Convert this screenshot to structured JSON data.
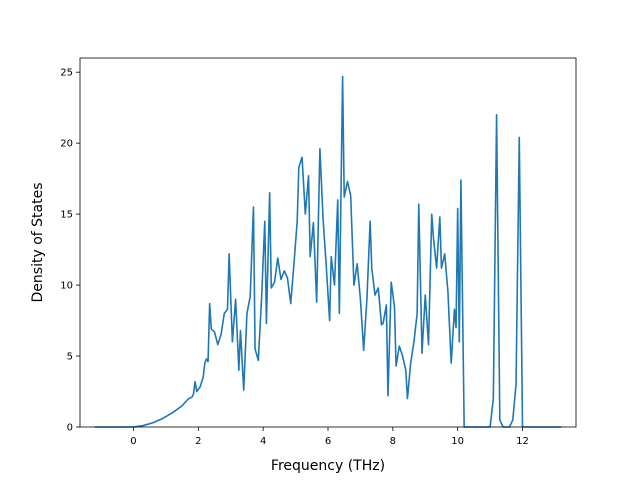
{
  "chart_data": {
    "type": "line",
    "title": "",
    "xlabel": "Frequency (THz)",
    "ylabel": "Density of States",
    "xlim": [
      -1.65,
      13.65
    ],
    "ylim": [
      0,
      26
    ],
    "xticks": [
      0,
      2,
      4,
      6,
      8,
      10,
      12
    ],
    "yticks": [
      0,
      5,
      10,
      15,
      20,
      25
    ],
    "grid": false,
    "legend": "none",
    "line_color": "#1f77b4",
    "series": [
      {
        "x": [
          -1.2,
          -0.5,
          0.0,
          0.3,
          0.6,
          0.9,
          1.2,
          1.5,
          1.7,
          1.8,
          1.85,
          1.9,
          1.95,
          2.05,
          2.15,
          2.2,
          2.25,
          2.3,
          2.35,
          2.4,
          2.5,
          2.6,
          2.7,
          2.8,
          2.9,
          2.95,
          3.05,
          3.15,
          3.25,
          3.3,
          3.4,
          3.5,
          3.6,
          3.7,
          3.75,
          3.85,
          3.95,
          4.05,
          4.1,
          4.2,
          4.25,
          4.35,
          4.45,
          4.55,
          4.65,
          4.75,
          4.85,
          4.95,
          5.05,
          5.1,
          5.2,
          5.3,
          5.4,
          5.45,
          5.55,
          5.65,
          5.75,
          5.85,
          5.95,
          6.05,
          6.1,
          6.2,
          6.3,
          6.35,
          6.45,
          6.5,
          6.6,
          6.7,
          6.8,
          6.9,
          7.0,
          7.1,
          7.2,
          7.3,
          7.35,
          7.45,
          7.55,
          7.65,
          7.7,
          7.8,
          7.85,
          7.95,
          8.05,
          8.1,
          8.2,
          8.3,
          8.4,
          8.45,
          8.55,
          8.65,
          8.75,
          8.8,
          8.9,
          9.0,
          9.1,
          9.2,
          9.25,
          9.35,
          9.45,
          9.5,
          9.6,
          9.7,
          9.8,
          9.9,
          9.95,
          10.0,
          10.05,
          10.1,
          10.2,
          10.25,
          10.3,
          10.35,
          10.5,
          11.0,
          11.1,
          11.2,
          11.3,
          11.4,
          11.5,
          11.6,
          11.7,
          11.8,
          11.9,
          12.0,
          12.05,
          12.5,
          13.2
        ],
        "y": [
          0.0,
          0.0,
          0.0,
          0.1,
          0.3,
          0.6,
          1.0,
          1.5,
          2.0,
          2.1,
          2.3,
          3.2,
          2.5,
          2.8,
          3.5,
          4.5,
          4.8,
          4.6,
          8.7,
          6.9,
          6.7,
          5.8,
          6.5,
          8.0,
          8.3,
          12.2,
          6.0,
          9.0,
          4.0,
          6.8,
          2.6,
          8.0,
          9.2,
          15.5,
          5.5,
          4.7,
          9.0,
          14.5,
          7.3,
          16.5,
          9.8,
          10.2,
          11.9,
          10.4,
          11.0,
          10.5,
          8.7,
          11.5,
          14.5,
          18.3,
          19.0,
          15.0,
          17.7,
          12.0,
          14.4,
          8.8,
          19.6,
          14.6,
          11.2,
          7.5,
          12.0,
          10.0,
          16.0,
          8.0,
          24.7,
          16.2,
          17.3,
          16.3,
          10.0,
          11.5,
          9.0,
          5.4,
          9.0,
          14.5,
          11.2,
          9.3,
          9.8,
          7.2,
          7.3,
          8.6,
          2.2,
          10.2,
          8.5,
          4.3,
          5.7,
          5.0,
          4.0,
          2.0,
          4.5,
          6.0,
          8.0,
          15.7,
          5.2,
          9.3,
          5.8,
          15.0,
          13.4,
          11.2,
          14.8,
          11.2,
          12.2,
          9.5,
          4.5,
          8.3,
          7.0,
          15.4,
          6.0,
          17.4,
          0.0,
          0.0,
          0.0,
          0.0,
          0.0,
          0.0,
          2.0,
          22.0,
          0.5,
          0.0,
          0.0,
          0.0,
          0.5,
          3.0,
          20.4,
          0.0,
          0.0,
          0.0,
          0.0
        ]
      }
    ]
  }
}
